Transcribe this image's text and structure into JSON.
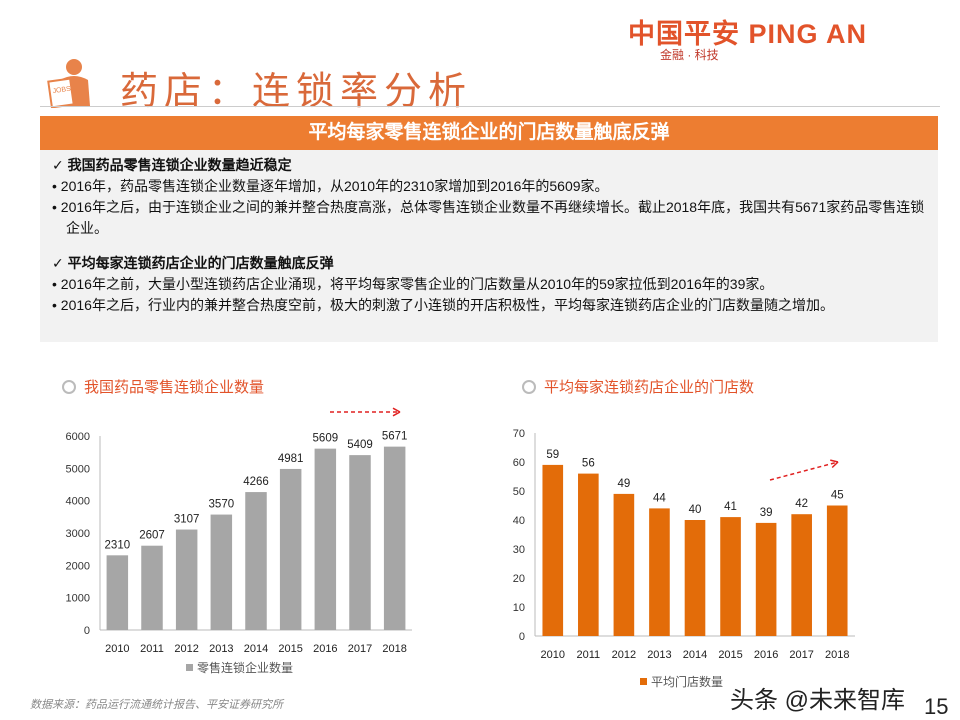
{
  "header": {
    "logo": "中国平安 PING AN",
    "logo_sub": "金融 · 科技",
    "icon": "jobs-person-icon",
    "title": "药店：连锁率分析"
  },
  "banner": "平均每家零售连锁企业的门店数量触底反弹",
  "summary": {
    "sections": [
      {
        "heading": "我国药品零售连锁企业数量趋近稳定",
        "bullets": [
          "2016年，药品零售连锁企业数量逐年增加，从2010年的2310家增加到2016年的5609家。",
          "2016年之后，由于连锁企业之间的兼并整合热度高涨，总体零售连锁企业数量不再继续增长。截止2018年底，我国共有5671家药品零售连锁企业。"
        ]
      },
      {
        "heading": "平均每家连锁药店企业的门店数量触底反弹",
        "bullets": [
          "2016年之前，大量小型连锁药店企业涌现，将平均每家零售企业的门店数量从2010年的59家拉低到2016年的39家。",
          "2016年之后，行业内的兼并整合热度空前，极大的刺激了小连锁的开店积极性，平均每家连锁药店企业的门店数量随之增加。"
        ]
      }
    ]
  },
  "chart_data": [
    {
      "type": "bar",
      "title": "我国药品零售连锁企业数量",
      "categories": [
        "2010",
        "2011",
        "2012",
        "2013",
        "2014",
        "2015",
        "2016",
        "2017",
        "2018"
      ],
      "series": [
        {
          "name": "零售连锁企业数量",
          "values": [
            2310,
            2607,
            3107,
            3570,
            4266,
            4981,
            5609,
            5409,
            5671
          ],
          "color": "#a6a6a6"
        }
      ],
      "ylim": [
        0,
        6000
      ],
      "yticks": [
        0,
        1000,
        2000,
        3000,
        4000,
        5000,
        6000
      ],
      "grid": false,
      "legend": "bottom",
      "annotation": "dashed red arrow 2016→2018"
    },
    {
      "type": "bar",
      "title": "平均每家连锁药店企业的门店数",
      "categories": [
        "2010",
        "2011",
        "2012",
        "2013",
        "2014",
        "2015",
        "2016",
        "2017",
        "2018"
      ],
      "series": [
        {
          "name": "平均门店数量",
          "values": [
            59,
            56,
            49,
            44,
            40,
            41,
            39,
            42,
            45
          ],
          "color": "#e36c09"
        }
      ],
      "ylim": [
        0,
        70
      ],
      "yticks": [
        0,
        10,
        20,
        30,
        40,
        50,
        60,
        70
      ],
      "grid": false,
      "legend": "bottom",
      "annotation": "dashed red arrow 2016→2018"
    }
  ],
  "footer": {
    "source": "数据来源：药品运行流通统计报告、平安证券研究所",
    "watermark": "头条 @未来智库",
    "page": "15"
  }
}
